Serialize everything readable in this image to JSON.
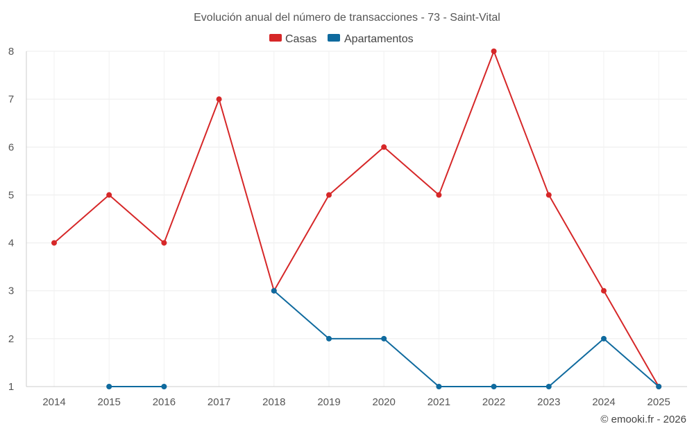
{
  "chart_data": {
    "type": "line",
    "title": "Evolución anual del número de transacciones - 73 - Saint-Vital",
    "categories": [
      "2014",
      "2015",
      "2016",
      "2017",
      "2018",
      "2019",
      "2020",
      "2021",
      "2022",
      "2023",
      "2024",
      "2025"
    ],
    "series": [
      {
        "name": "Casas",
        "color": "#d62728",
        "values": [
          4,
          5,
          4,
          7,
          3,
          5,
          6,
          5,
          8,
          5,
          3,
          1
        ]
      },
      {
        "name": "Apartamentos",
        "color": "#0f6a9e",
        "values": [
          null,
          1,
          1,
          null,
          3,
          2,
          2,
          1,
          1,
          1,
          2,
          1
        ]
      }
    ],
    "ylim": [
      1,
      8
    ],
    "yticks": [
      "1",
      "2",
      "3",
      "4",
      "5",
      "6",
      "7",
      "8"
    ],
    "xlabel": "",
    "ylabel": "",
    "grid": true,
    "legend": "top-center"
  },
  "credit": "© emooki.fr - 2026"
}
